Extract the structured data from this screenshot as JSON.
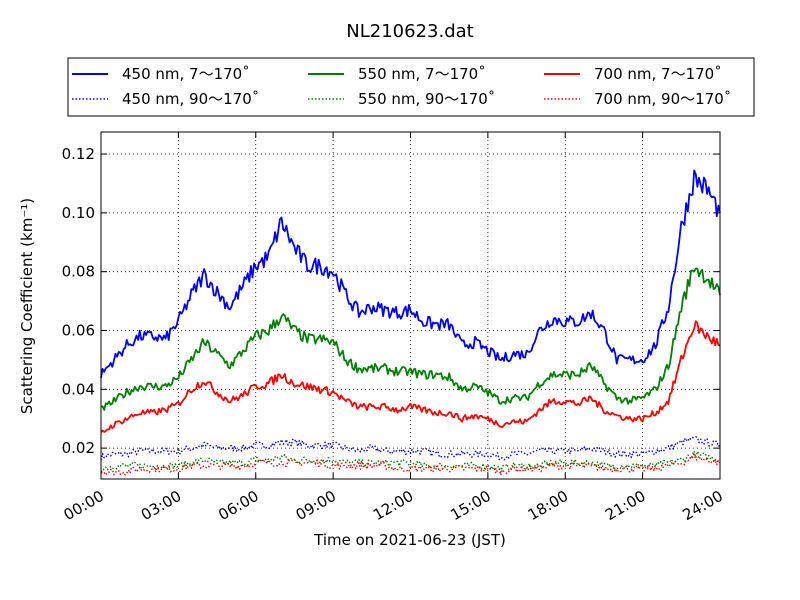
{
  "chart_data": {
    "type": "line",
    "title": "NL210623.dat",
    "xlabel": "Time on 2021-06-23 (JST)",
    "ylabel": "Scattering Coefficient (km⁻¹)",
    "xlim": [
      0,
      24
    ],
    "ylim": [
      0.0095,
      0.1275
    ],
    "x_ticks": [
      0,
      3,
      6,
      9,
      12,
      15,
      18,
      21,
      24
    ],
    "x_tick_labels": [
      "00:00",
      "03:00",
      "06:00",
      "09:00",
      "12:00",
      "15:00",
      "18:00",
      "21:00",
      "24:00"
    ],
    "y_ticks": [
      0.02,
      0.04,
      0.06,
      0.08,
      0.1,
      0.12
    ],
    "y_tick_labels": [
      "0.02",
      "0.04",
      "0.06",
      "0.08",
      "0.10",
      "0.12"
    ],
    "grid": true,
    "legend_position": "top",
    "x": [
      0,
      0.5,
      1,
      1.5,
      2,
      2.5,
      3,
      3.5,
      4,
      4.5,
      5,
      5.5,
      6,
      6.5,
      7,
      7.5,
      8,
      8.5,
      9,
      9.5,
      10,
      10.5,
      11,
      11.5,
      12,
      12.5,
      13,
      13.5,
      14,
      14.5,
      15,
      15.5,
      16,
      16.5,
      17,
      17.5,
      18,
      18.5,
      19,
      19.5,
      20,
      20.5,
      21,
      21.5,
      22,
      22.5,
      23,
      23.5,
      24
    ],
    "series": [
      {
        "name": "450 nm, 7～170˚",
        "color": "#0000ff",
        "style": "solid",
        "values": [
          0.045,
          0.05,
          0.055,
          0.058,
          0.058,
          0.057,
          0.063,
          0.072,
          0.079,
          0.073,
          0.068,
          0.075,
          0.082,
          0.085,
          0.097,
          0.088,
          0.082,
          0.082,
          0.08,
          0.072,
          0.066,
          0.068,
          0.067,
          0.066,
          0.067,
          0.063,
          0.062,
          0.062,
          0.055,
          0.056,
          0.053,
          0.05,
          0.052,
          0.052,
          0.06,
          0.064,
          0.063,
          0.063,
          0.066,
          0.06,
          0.05,
          0.05,
          0.05,
          0.055,
          0.068,
          0.095,
          0.112,
          0.108,
          0.1
        ]
      },
      {
        "name": "550 nm, 7～170˚",
        "color": "#008000",
        "style": "solid",
        "values": [
          0.033,
          0.036,
          0.039,
          0.041,
          0.041,
          0.041,
          0.044,
          0.05,
          0.056,
          0.052,
          0.048,
          0.053,
          0.058,
          0.06,
          0.065,
          0.06,
          0.057,
          0.057,
          0.056,
          0.05,
          0.047,
          0.047,
          0.047,
          0.046,
          0.046,
          0.045,
          0.045,
          0.044,
          0.04,
          0.041,
          0.039,
          0.036,
          0.037,
          0.037,
          0.042,
          0.045,
          0.045,
          0.045,
          0.048,
          0.042,
          0.037,
          0.036,
          0.037,
          0.04,
          0.048,
          0.068,
          0.082,
          0.078,
          0.072
        ]
      },
      {
        "name": "700 nm, 7～170˚",
        "color": "#ff0000",
        "style": "solid",
        "values": [
          0.025,
          0.028,
          0.03,
          0.032,
          0.032,
          0.033,
          0.035,
          0.04,
          0.043,
          0.039,
          0.036,
          0.038,
          0.041,
          0.042,
          0.045,
          0.042,
          0.041,
          0.04,
          0.039,
          0.036,
          0.034,
          0.034,
          0.034,
          0.033,
          0.034,
          0.033,
          0.032,
          0.032,
          0.03,
          0.031,
          0.03,
          0.028,
          0.029,
          0.029,
          0.033,
          0.036,
          0.036,
          0.035,
          0.037,
          0.033,
          0.031,
          0.03,
          0.03,
          0.032,
          0.036,
          0.05,
          0.062,
          0.058,
          0.055
        ]
      },
      {
        "name": "450 nm, 90～170˚",
        "color": "#0000ff",
        "style": "dotted",
        "values": [
          0.017,
          0.018,
          0.018,
          0.019,
          0.019,
          0.019,
          0.019,
          0.02,
          0.021,
          0.02,
          0.02,
          0.02,
          0.021,
          0.021,
          0.022,
          0.022,
          0.021,
          0.021,
          0.021,
          0.02,
          0.019,
          0.02,
          0.019,
          0.019,
          0.019,
          0.019,
          0.018,
          0.018,
          0.018,
          0.018,
          0.018,
          0.017,
          0.018,
          0.018,
          0.019,
          0.019,
          0.019,
          0.019,
          0.02,
          0.019,
          0.018,
          0.018,
          0.018,
          0.019,
          0.02,
          0.022,
          0.023,
          0.022,
          0.021
        ]
      },
      {
        "name": "550 nm, 90～170˚",
        "color": "#008000",
        "style": "dotted",
        "values": [
          0.013,
          0.014,
          0.014,
          0.014,
          0.014,
          0.014,
          0.014,
          0.015,
          0.016,
          0.015,
          0.015,
          0.015,
          0.016,
          0.016,
          0.017,
          0.016,
          0.016,
          0.016,
          0.016,
          0.015,
          0.015,
          0.015,
          0.015,
          0.015,
          0.015,
          0.014,
          0.014,
          0.014,
          0.014,
          0.014,
          0.014,
          0.013,
          0.014,
          0.014,
          0.014,
          0.015,
          0.015,
          0.015,
          0.015,
          0.014,
          0.014,
          0.014,
          0.014,
          0.014,
          0.015,
          0.016,
          0.018,
          0.017,
          0.016
        ]
      },
      {
        "name": "700 nm, 90～170˚",
        "color": "#ff0000",
        "style": "dotted",
        "values": [
          0.012,
          0.012,
          0.012,
          0.013,
          0.013,
          0.013,
          0.013,
          0.014,
          0.014,
          0.014,
          0.014,
          0.014,
          0.015,
          0.015,
          0.015,
          0.015,
          0.015,
          0.015,
          0.014,
          0.014,
          0.014,
          0.014,
          0.014,
          0.013,
          0.013,
          0.013,
          0.013,
          0.013,
          0.013,
          0.013,
          0.013,
          0.012,
          0.013,
          0.013,
          0.013,
          0.014,
          0.014,
          0.014,
          0.014,
          0.013,
          0.013,
          0.013,
          0.013,
          0.013,
          0.014,
          0.015,
          0.017,
          0.016,
          0.015
        ]
      }
    ]
  }
}
